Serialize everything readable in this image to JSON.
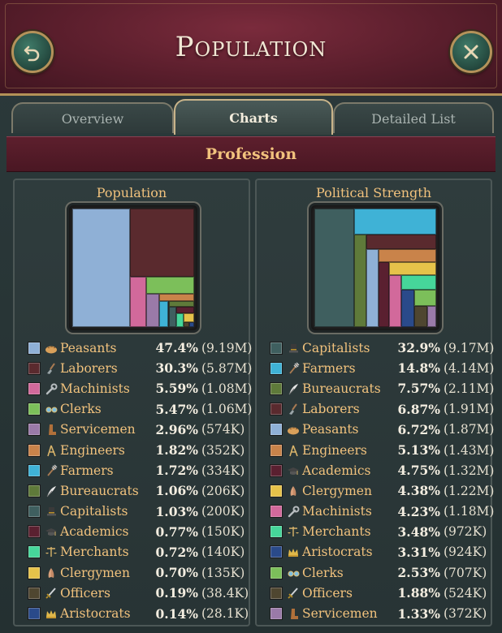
{
  "header": {
    "title": "Population"
  },
  "buttons": {
    "back_icon": "back-arrow-icon",
    "close_icon": "close-x-icon"
  },
  "tabs": [
    {
      "label": "Overview",
      "active": false
    },
    {
      "label": "Charts",
      "active": true
    },
    {
      "label": "Detailed List",
      "active": false
    }
  ],
  "section": {
    "title": "Profession"
  },
  "colors": {
    "Peasants": "#8fb0d6",
    "Laborers": "#5a2a2e",
    "Machinists": "#d2699b",
    "Clerks": "#7cbf5a",
    "Servicemen": "#9a7aa8",
    "Engineers": "#c9834a",
    "Farmers": "#3fb2d6",
    "Bureaucrats": "#5f7a3a",
    "Capitalists": "#3f5f5f",
    "Academics": "#5a2030",
    "Merchants": "#46d69a",
    "Clergymen": "#e6c24a",
    "Officers": "#4f4630",
    "Aristocrats": "#2a4a8a"
  },
  "icons": {
    "Peasants": "bread-icon",
    "Laborers": "shovel-icon",
    "Machinists": "wrench-icon",
    "Clerks": "glasses-icon",
    "Servicemen": "boot-icon",
    "Engineers": "compass-icon",
    "Farmers": "pitchfork-icon",
    "Bureaucrats": "quill-icon",
    "Capitalists": "top-hat-icon",
    "Academics": "mortarboard-icon",
    "Merchants": "scales-icon",
    "Clergymen": "praying-hands-icon",
    "Officers": "sword-icon",
    "Aristocrats": "crown-icon"
  },
  "chart_data": [
    {
      "type": "treemap",
      "title": "Population",
      "items": [
        {
          "name": "Peasants",
          "pct": "47.4%",
          "abs": "(9.19M)",
          "value": 47.4
        },
        {
          "name": "Laborers",
          "pct": "30.3%",
          "abs": "(5.87M)",
          "value": 30.3
        },
        {
          "name": "Machinists",
          "pct": "5.59%",
          "abs": "(1.08M)",
          "value": 5.59
        },
        {
          "name": "Clerks",
          "pct": "5.47%",
          "abs": "(1.06M)",
          "value": 5.47
        },
        {
          "name": "Servicemen",
          "pct": "2.96%",
          "abs": "(574K)",
          "value": 2.96
        },
        {
          "name": "Engineers",
          "pct": "1.82%",
          "abs": "(352K)",
          "value": 1.82
        },
        {
          "name": "Farmers",
          "pct": "1.72%",
          "abs": "(334K)",
          "value": 1.72
        },
        {
          "name": "Bureaucrats",
          "pct": "1.06%",
          "abs": "(206K)",
          "value": 1.06
        },
        {
          "name": "Capitalists",
          "pct": "1.03%",
          "abs": "(200K)",
          "value": 1.03
        },
        {
          "name": "Academics",
          "pct": "0.77%",
          "abs": "(150K)",
          "value": 0.77
        },
        {
          "name": "Merchants",
          "pct": "0.72%",
          "abs": "(140K)",
          "value": 0.72
        },
        {
          "name": "Clergymen",
          "pct": "0.70%",
          "abs": "(135K)",
          "value": 0.7
        },
        {
          "name": "Officers",
          "pct": "0.19%",
          "abs": "(38.4K)",
          "value": 0.19
        },
        {
          "name": "Aristocrats",
          "pct": "0.14%",
          "abs": "(28.1K)",
          "value": 0.14
        }
      ]
    },
    {
      "type": "treemap",
      "title": "Political Strength",
      "items": [
        {
          "name": "Capitalists",
          "pct": "32.9%",
          "abs": "(9.17M)",
          "value": 32.9
        },
        {
          "name": "Farmers",
          "pct": "14.8%",
          "abs": "(4.14M)",
          "value": 14.8
        },
        {
          "name": "Bureaucrats",
          "pct": "7.57%",
          "abs": "(2.11M)",
          "value": 7.57
        },
        {
          "name": "Laborers",
          "pct": "6.87%",
          "abs": "(1.91M)",
          "value": 6.87
        },
        {
          "name": "Peasants",
          "pct": "6.72%",
          "abs": "(1.87M)",
          "value": 6.72
        },
        {
          "name": "Engineers",
          "pct": "5.13%",
          "abs": "(1.43M)",
          "value": 5.13
        },
        {
          "name": "Academics",
          "pct": "4.75%",
          "abs": "(1.32M)",
          "value": 4.75
        },
        {
          "name": "Clergymen",
          "pct": "4.38%",
          "abs": "(1.22M)",
          "value": 4.38
        },
        {
          "name": "Machinists",
          "pct": "4.23%",
          "abs": "(1.18M)",
          "value": 4.23
        },
        {
          "name": "Merchants",
          "pct": "3.48%",
          "abs": "(972K)",
          "value": 3.48
        },
        {
          "name": "Aristocrats",
          "pct": "3.31%",
          "abs": "(924K)",
          "value": 3.31
        },
        {
          "name": "Clerks",
          "pct": "2.53%",
          "abs": "(707K)",
          "value": 2.53
        },
        {
          "name": "Officers",
          "pct": "1.88%",
          "abs": "(524K)",
          "value": 1.88
        },
        {
          "name": "Servicemen",
          "pct": "1.33%",
          "abs": "(372K)",
          "value": 1.33
        }
      ]
    }
  ]
}
